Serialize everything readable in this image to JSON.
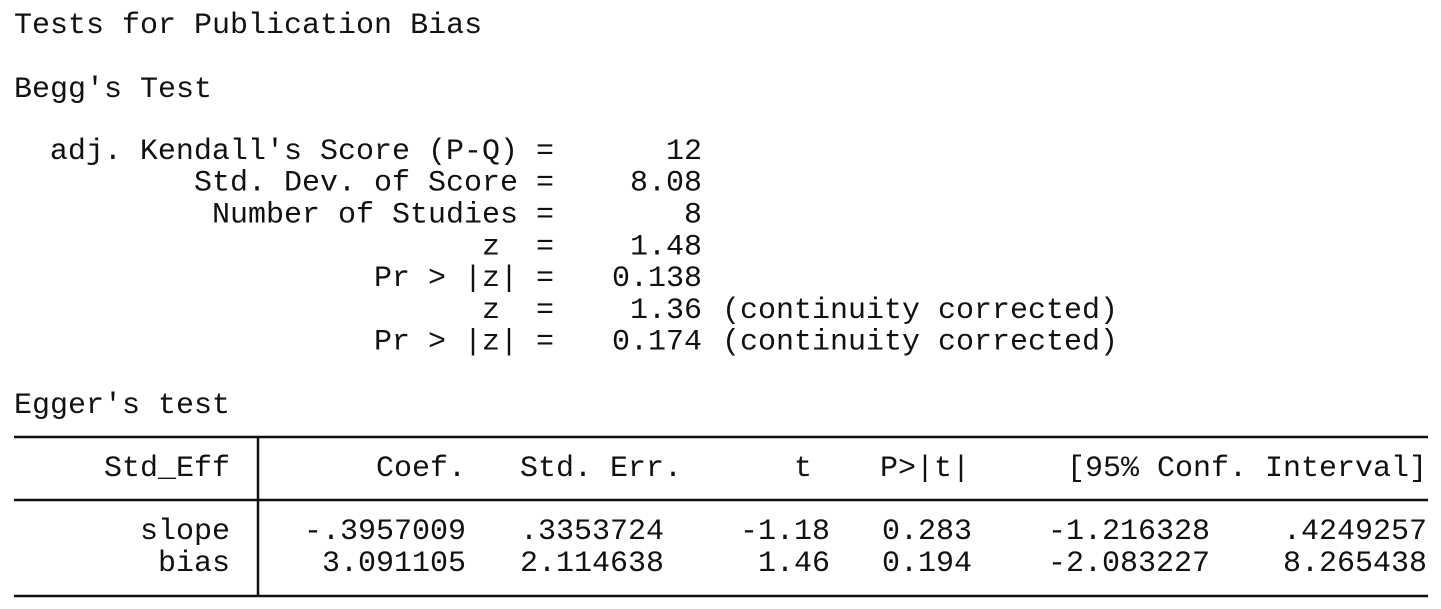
{
  "title": "Tests for Publication Bias",
  "begg": {
    "heading": "Begg's Test",
    "rows": [
      {
        "label": "adj. Kendall's Score (P-Q) =",
        "value": "12"
      },
      {
        "label": "Std. Dev. of Score =",
        "value": "8.08"
      },
      {
        "label": "Number of Studies =",
        "value": "8"
      },
      {
        "label": "z  =",
        "value": "1.48"
      },
      {
        "label": "Pr > |z| =",
        "value": "0.138"
      },
      {
        "label": "z  =",
        "value": "1.36",
        "note": "(continuity corrected)"
      },
      {
        "label": "Pr > |z| =",
        "value": "0.174",
        "note": "(continuity corrected)"
      }
    ]
  },
  "egger": {
    "heading": "Egger's test",
    "table": {
      "header": [
        "Std_Eff",
        "Coef.",
        "Std. Err.",
        "t",
        "P>|t|",
        "[95% Conf. Interval]"
      ],
      "rows": [
        [
          "slope",
          "-.3957009",
          ".3353724",
          "-1.18",
          "0.283",
          "-1.216328",
          ".4249257"
        ],
        [
          "bias",
          "3.091105",
          "2.114638",
          "1.46",
          "0.194",
          "-2.083227",
          "8.265438"
        ]
      ]
    }
  }
}
